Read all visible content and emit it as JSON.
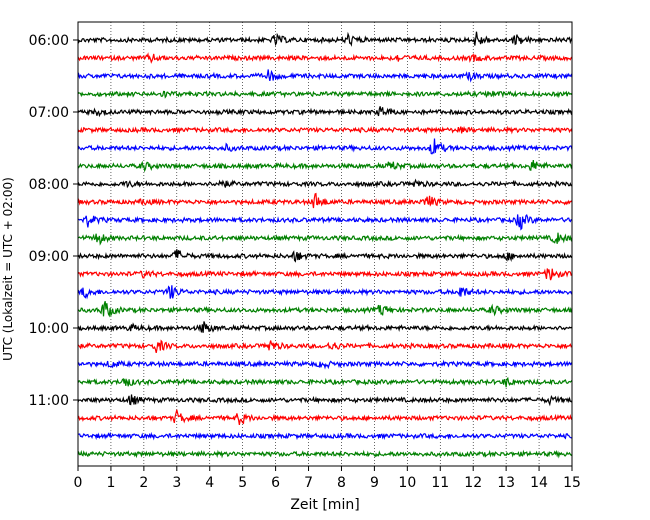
{
  "chart_data": {
    "type": "line",
    "subtype": "helicorder-seismogram",
    "title": "",
    "xlabel": "Zeit  [min]",
    "ylabel": "UTC (Lokalzeit = UTC + 02:00)",
    "xlim": [
      0,
      15
    ],
    "x_ticks": [
      "0",
      "1",
      "2",
      "3",
      "4",
      "5",
      "6",
      "7",
      "8",
      "9",
      "10",
      "11",
      "12",
      "13",
      "14",
      "15"
    ],
    "y_ticks": [
      {
        "label": "06:00",
        "trace_index": 0
      },
      {
        "label": "07:00",
        "trace_index": 4
      },
      {
        "label": "08:00",
        "trace_index": 8
      },
      {
        "label": "09:00",
        "trace_index": 12
      },
      {
        "label": "10:00",
        "trace_index": 16
      },
      {
        "label": "11:00",
        "trace_index": 20
      }
    ],
    "trace_interval_minutes": 15,
    "trace_count": 24,
    "grid": "vertical dotted at every minute",
    "colors": [
      "#000000",
      "#ff0000",
      "#0000ff",
      "#008000"
    ],
    "traces": [
      {
        "start": "06:00",
        "events": [
          [
            6.0,
            0.8
          ],
          [
            8.2,
            0.9
          ],
          [
            12.1,
            1.2
          ],
          [
            13.3,
            0.8
          ]
        ]
      },
      {
        "start": "06:15",
        "events": [
          [
            2.2,
            0.6
          ],
          [
            9.7,
            0.5
          ],
          [
            12.0,
            0.4
          ]
        ]
      },
      {
        "start": "06:30",
        "events": [
          [
            5.8,
            0.9
          ],
          [
            11.9,
            0.5
          ]
        ]
      },
      {
        "start": "06:45",
        "events": [
          [
            2.6,
            0.4
          ],
          [
            12.5,
            0.4
          ]
        ]
      },
      {
        "start": "07:00",
        "events": [
          [
            0.6,
            0.4
          ],
          [
            9.2,
            0.9
          ]
        ]
      },
      {
        "start": "07:15",
        "events": [
          [
            11.6,
            0.3
          ]
        ]
      },
      {
        "start": "07:30",
        "events": [
          [
            10.8,
            1.5
          ],
          [
            4.5,
            0.4
          ]
        ]
      },
      {
        "start": "07:45",
        "events": [
          [
            2.0,
            0.6
          ],
          [
            9.5,
            0.7
          ],
          [
            13.8,
            0.9
          ]
        ]
      },
      {
        "start": "08:00",
        "events": [
          [
            4.3,
            0.7
          ],
          [
            1.5,
            0.4
          ],
          [
            10.2,
            0.6
          ]
        ]
      },
      {
        "start": "08:15",
        "events": [
          [
            7.2,
            1.4
          ],
          [
            10.6,
            1.2
          ],
          [
            2.0,
            0.4
          ]
        ]
      },
      {
        "start": "08:30",
        "events": [
          [
            0.3,
            0.9
          ],
          [
            13.4,
            1.6
          ]
        ]
      },
      {
        "start": "08:45",
        "events": [
          [
            0.6,
            1.0
          ],
          [
            14.5,
            1.0
          ]
        ]
      },
      {
        "start": "09:00",
        "events": [
          [
            3.0,
            1.0
          ],
          [
            6.6,
            0.8
          ],
          [
            13.0,
            0.6
          ]
        ]
      },
      {
        "start": "09:15",
        "events": [
          [
            14.3,
            1.2
          ],
          [
            2.0,
            0.5
          ]
        ]
      },
      {
        "start": "09:30",
        "events": [
          [
            0.2,
            0.8
          ],
          [
            2.8,
            1.2
          ],
          [
            11.6,
            1.0
          ]
        ]
      },
      {
        "start": "09:45",
        "events": [
          [
            0.8,
            1.6
          ],
          [
            9.2,
            0.9
          ],
          [
            12.6,
            0.7
          ]
        ]
      },
      {
        "start": "10:00",
        "events": [
          [
            3.8,
            1.0
          ],
          [
            1.6,
            0.4
          ]
        ]
      },
      {
        "start": "10:15",
        "events": [
          [
            2.4,
            1.1
          ],
          [
            5.8,
            1.1
          ],
          [
            7.7,
            0.7
          ]
        ]
      },
      {
        "start": "10:30",
        "events": [
          [
            1.0,
            0.5
          ],
          [
            7.4,
            0.6
          ]
        ]
      },
      {
        "start": "10:45",
        "events": [
          [
            1.4,
            0.9
          ],
          [
            13.0,
            0.6
          ]
        ]
      },
      {
        "start": "11:00",
        "events": [
          [
            1.6,
            0.8
          ],
          [
            14.3,
            0.5
          ]
        ]
      },
      {
        "start": "11:15",
        "events": [
          [
            3.0,
            1.1
          ],
          [
            4.9,
            1.0
          ]
        ]
      },
      {
        "start": "11:30",
        "events": []
      },
      {
        "start": "11:45",
        "events": []
      }
    ]
  }
}
